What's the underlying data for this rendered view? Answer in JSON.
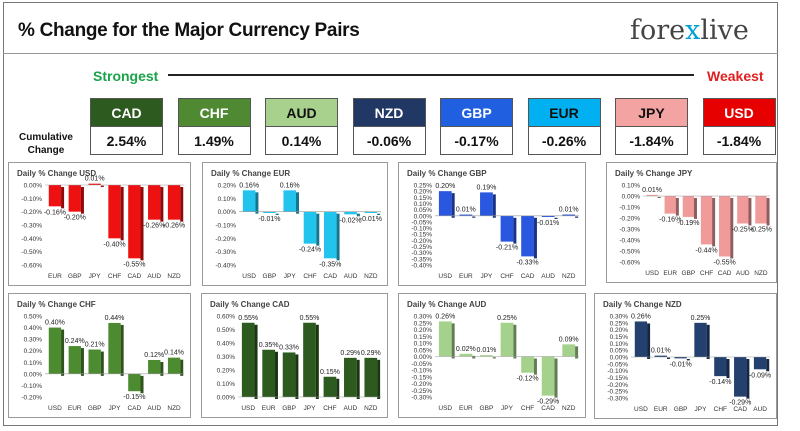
{
  "header": {
    "title": "% Change for the Major Currency Pairs",
    "logo_left": "fore",
    "logo_x": "x",
    "logo_right": "live"
  },
  "legend": {
    "strongest": "Strongest",
    "weakest": "Weakest",
    "cumulative_label": "Cumulative Change"
  },
  "currencies": [
    {
      "code": "CAD",
      "value": "2.54%",
      "bg": "#2d5a1f",
      "fg": "#ffffff"
    },
    {
      "code": "CHF",
      "value": "1.49%",
      "bg": "#4f8a33",
      "fg": "#ffffff"
    },
    {
      "code": "AUD",
      "value": "0.14%",
      "bg": "#a9d18e",
      "fg": "#111111"
    },
    {
      "code": "NZD",
      "value": "-0.06%",
      "bg": "#213864",
      "fg": "#ffffff"
    },
    {
      "code": "GBP",
      "value": "-0.17%",
      "bg": "#1f5fe0",
      "fg": "#ffffff"
    },
    {
      "code": "EUR",
      "value": "-0.26%",
      "bg": "#00b0f0",
      "fg": "#111111"
    },
    {
      "code": "JPY",
      "value": "-1.84%",
      "bg": "#f4a3a3",
      "fg": "#111111"
    },
    {
      "code": "USD",
      "value": "-1.84%",
      "bg": "#e60000",
      "fg": "#ffffff"
    }
  ],
  "chart_data": [
    {
      "type": "bar",
      "title": "Daily % Change USD",
      "categories": [
        "EUR",
        "GBP",
        "JPY",
        "CHF",
        "CAD",
        "AUD",
        "NZD"
      ],
      "values": [
        -0.16,
        -0.2,
        0.01,
        -0.4,
        -0.55,
        -0.26,
        -0.26
      ],
      "labels": [
        "-0.16%",
        "-0.20%",
        "0.01%",
        "-0.40%",
        "-0.55%",
        "-0.26%",
        "-0.26%"
      ],
      "ylim": [
        -0.6,
        0.0
      ],
      "yticks": [
        "0.00%",
        "-0.10%",
        "-0.20%",
        "-0.30%",
        "-0.40%",
        "-0.50%",
        "-0.60%"
      ],
      "color": "#ee1111"
    },
    {
      "type": "bar",
      "title": "Daily % Change EUR",
      "categories": [
        "USD",
        "GBP",
        "JPY",
        "CHF",
        "CAD",
        "AUD",
        "NZD"
      ],
      "values": [
        0.16,
        -0.01,
        0.16,
        -0.24,
        -0.35,
        -0.02,
        -0.01
      ],
      "labels": [
        "0.16%",
        "-0.01%",
        "0.16%",
        "-0.24%",
        "-0.35%",
        "-0.02%",
        "-0.01%"
      ],
      "ylim": [
        -0.4,
        0.2
      ],
      "yticks": [
        "0.20%",
        "0.10%",
        "0.00%",
        "-0.10%",
        "-0.20%",
        "-0.30%",
        "-0.40%"
      ],
      "color": "#22c4ee"
    },
    {
      "type": "bar",
      "title": "Daily % Change GBP",
      "categories": [
        "USD",
        "EUR",
        "JPY",
        "CHF",
        "CAD",
        "AUD",
        "NZD"
      ],
      "values": [
        0.2,
        0.01,
        0.19,
        -0.21,
        -0.33,
        -0.01,
        0.01
      ],
      "labels": [
        "0.20%",
        "0.01%",
        "0.19%",
        "-0.21%",
        "-0.33%",
        "-0.01%",
        "0.01%"
      ],
      "ylim": [
        -0.4,
        0.25
      ],
      "yticks": [
        "0.25%",
        "0.20%",
        "0.15%",
        "0.10%",
        "0.05%",
        "0.00%",
        "-0.05%",
        "-0.10%",
        "-0.15%",
        "-0.20%",
        "-0.25%",
        "-0.30%",
        "-0.35%",
        "-0.40%"
      ],
      "color": "#2a57e0"
    },
    {
      "type": "bar",
      "title": "Daily % Change JPY",
      "categories": [
        "USD",
        "EUR",
        "GBP",
        "CHF",
        "CAD",
        "AUD",
        "NZD"
      ],
      "values": [
        0.01,
        -0.16,
        -0.19,
        -0.44,
        -0.55,
        -0.25,
        -0.25
      ],
      "labels": [
        "0.01%",
        "-0.16%",
        "-0.19%",
        "-0.44%",
        "-0.55%",
        "-0.25%",
        "-0.25%"
      ],
      "ylim": [
        -0.6,
        0.1
      ],
      "yticks": [
        "0.10%",
        "0.00%",
        "-0.10%",
        "-0.20%",
        "-0.30%",
        "-0.40%",
        "-0.50%",
        "-0.60%"
      ],
      "color": "#f09a9a"
    },
    {
      "type": "bar",
      "title": "Daily % Change CHF",
      "categories": [
        "USD",
        "EUR",
        "GBP",
        "JPY",
        "CAD",
        "AUD",
        "NZD"
      ],
      "values": [
        0.4,
        0.24,
        0.21,
        0.44,
        -0.15,
        0.12,
        0.14
      ],
      "labels": [
        "0.40%",
        "0.24%",
        "0.21%",
        "0.44%",
        "-0.15%",
        "0.12%",
        "0.14%"
      ],
      "ylim": [
        -0.2,
        0.5
      ],
      "yticks": [
        "0.50%",
        "0.40%",
        "0.30%",
        "0.20%",
        "0.10%",
        "0.00%",
        "-0.10%",
        "-0.20%"
      ],
      "color": "#4c8b30"
    },
    {
      "type": "bar",
      "title": "Daily % Change CAD",
      "categories": [
        "USD",
        "EUR",
        "GBP",
        "JPY",
        "CHF",
        "AUD",
        "NZD"
      ],
      "values": [
        0.55,
        0.35,
        0.33,
        0.55,
        0.15,
        0.29,
        0.29
      ],
      "labels": [
        "0.55%",
        "0.35%",
        "0.33%",
        "0.55%",
        "0.15%",
        "0.29%",
        "0.29%"
      ],
      "ylim": [
        0.0,
        0.6
      ],
      "yticks": [
        "0.60%",
        "0.50%",
        "0.40%",
        "0.30%",
        "0.20%",
        "0.10%",
        "0.00%"
      ],
      "color": "#2d5a1f"
    },
    {
      "type": "bar",
      "title": "Daily % Change AUD",
      "categories": [
        "USD",
        "EUR",
        "GBP",
        "JPY",
        "CHF",
        "CAD",
        "NZD"
      ],
      "values": [
        0.26,
        0.02,
        0.01,
        0.25,
        -0.12,
        -0.29,
        0.09
      ],
      "labels": [
        "0.26%",
        "0.02%",
        "0.01%",
        "0.25%",
        "-0.12%",
        "-0.29%",
        "0.09%"
      ],
      "ylim": [
        -0.3,
        0.3
      ],
      "yticks": [
        "0.30%",
        "0.25%",
        "0.20%",
        "0.15%",
        "0.10%",
        "0.05%",
        "0.00%",
        "-0.05%",
        "-0.10%",
        "-0.15%",
        "-0.20%",
        "-0.25%",
        "-0.30%"
      ],
      "color": "#a4d28c"
    },
    {
      "type": "bar",
      "title": "Daily % Change NZD",
      "categories": [
        "USD",
        "EUR",
        "GBP",
        "JPY",
        "CHF",
        "CAD",
        "AUD"
      ],
      "values": [
        0.26,
        0.01,
        -0.01,
        0.25,
        -0.14,
        -0.29,
        -0.09
      ],
      "labels": [
        "0.26%",
        "0.01%",
        "-0.01%",
        "0.25%",
        "-0.14%",
        "-0.29%",
        "-0.09%"
      ],
      "ylim": [
        -0.3,
        0.3
      ],
      "yticks": [
        "0.30%",
        "0.25%",
        "0.20%",
        "0.15%",
        "0.10%",
        "0.05%",
        "0.00%",
        "-0.05%",
        "-0.10%",
        "-0.15%",
        "-0.20%",
        "-0.25%",
        "-0.30%"
      ],
      "color": "#23406e"
    }
  ]
}
